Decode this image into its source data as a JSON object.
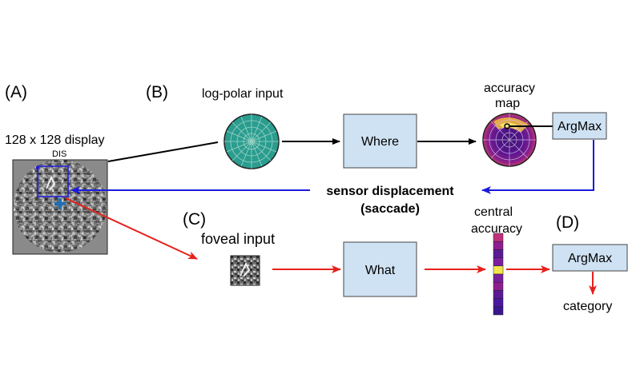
{
  "panels": {
    "a": "(A)",
    "b": "(B)",
    "c": "(C)",
    "d": "(D)"
  },
  "labels": {
    "display": "128 x 128 display",
    "dis": "DIS",
    "log_polar_input": "log-polar input",
    "accuracy_map_line1": "accuracy",
    "accuracy_map_line2": "map",
    "foveal_input": "foveal input",
    "central_accuracy_line1": "central",
    "central_accuracy_line2": "accuracy",
    "sensor_displacement_line1": "sensor displacement",
    "sensor_displacement_line2": "(saccade)",
    "category": "category"
  },
  "boxes": {
    "where": "Where",
    "what": "What",
    "argmax_top": "ArgMax",
    "argmax_bottom": "ArgMax"
  },
  "colors": {
    "box_fill": "#cfe2f3",
    "red_arrow": "#e8201c",
    "blue_arrow": "#1a1adc",
    "saccade_text": "#1a1a5e",
    "dis_text": "#8b1a1a",
    "logpolar_fill": "#2a9d8f"
  },
  "central_accuracy_cells": [
    "#c0307a",
    "#8e1e8e",
    "#5a1a96",
    "#7a1ea0",
    "#f4e64a",
    "#7a1ea0",
    "#8e1e8e",
    "#5a1a96",
    "#4a18a0",
    "#3a1690"
  ]
}
